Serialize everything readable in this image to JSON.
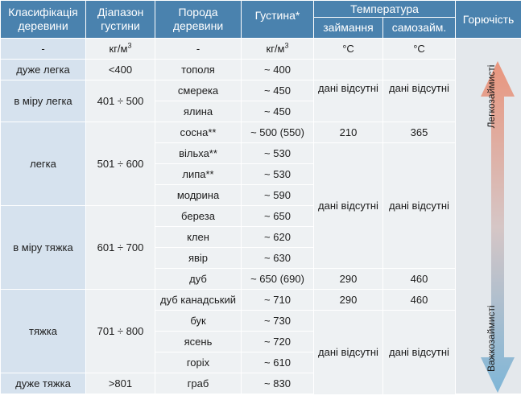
{
  "headers": {
    "classification": "Класифікація деревини",
    "density_range": "Діапазон густини",
    "species": "Порода деревини",
    "density": "Густина*",
    "temperature": "Температура",
    "ignition": "займання",
    "self_ignition": "самозайм.",
    "flammability": "Горючість"
  },
  "units": {
    "classification": "-",
    "density_range": "кг/м",
    "density_range_sup": "3",
    "species": "-",
    "density": "кг/м",
    "density_sup": "3",
    "ignition": "°C",
    "self_ignition": "°C"
  },
  "classes": [
    {
      "name": "дуже легка",
      "range": "<400"
    },
    {
      "name": "в міру легка",
      "range": "401 ÷ 500"
    },
    {
      "name": "легка",
      "range": "501 ÷ 600"
    },
    {
      "name": "в міру тяжка",
      "range": "601 ÷ 700"
    },
    {
      "name": "тяжка",
      "range": "701 ÷ 800"
    },
    {
      "name": "дуже тяжка",
      "range": ">801"
    }
  ],
  "species": [
    {
      "name": "тополя",
      "density": "~ 400"
    },
    {
      "name": "смерека",
      "density": "~ 450"
    },
    {
      "name": "ялина",
      "density": "~ 450"
    },
    {
      "name": "сосна**",
      "density": "~ 500 (550)"
    },
    {
      "name": "вільха**",
      "density": "~ 530"
    },
    {
      "name": "липа**",
      "density": "~ 530"
    },
    {
      "name": "модрина",
      "density": "~ 590"
    },
    {
      "name": "береза",
      "density": "~ 650"
    },
    {
      "name": "клен",
      "density": "~ 620"
    },
    {
      "name": "явір",
      "density": "~ 630"
    },
    {
      "name": "дуб",
      "density": "~ 650 (690)"
    },
    {
      "name": "дуб канадський",
      "density": "~ 710"
    },
    {
      "name": "бук",
      "density": "~ 730"
    },
    {
      "name": "ясень",
      "density": "~ 720"
    },
    {
      "name": "горіх",
      "density": "~ 610"
    },
    {
      "name": "граб",
      "density": "~ 830"
    }
  ],
  "temps": {
    "no_data": "дані відсутні",
    "pine_ignition": "210",
    "pine_self": "365",
    "oak_ignition": "290",
    "oak_self": "460",
    "canadian_oak_ignition": "290",
    "canadian_oak_self": "460"
  },
  "flammability": {
    "easy": "Легкозаймисті",
    "hard": "Важкозаймисті"
  },
  "colors": {
    "header": "#4a82ae",
    "class_column": "#d6e2ee",
    "arrow_top": "#e9957d",
    "arrow_bottom": "#7fb6d7"
  }
}
